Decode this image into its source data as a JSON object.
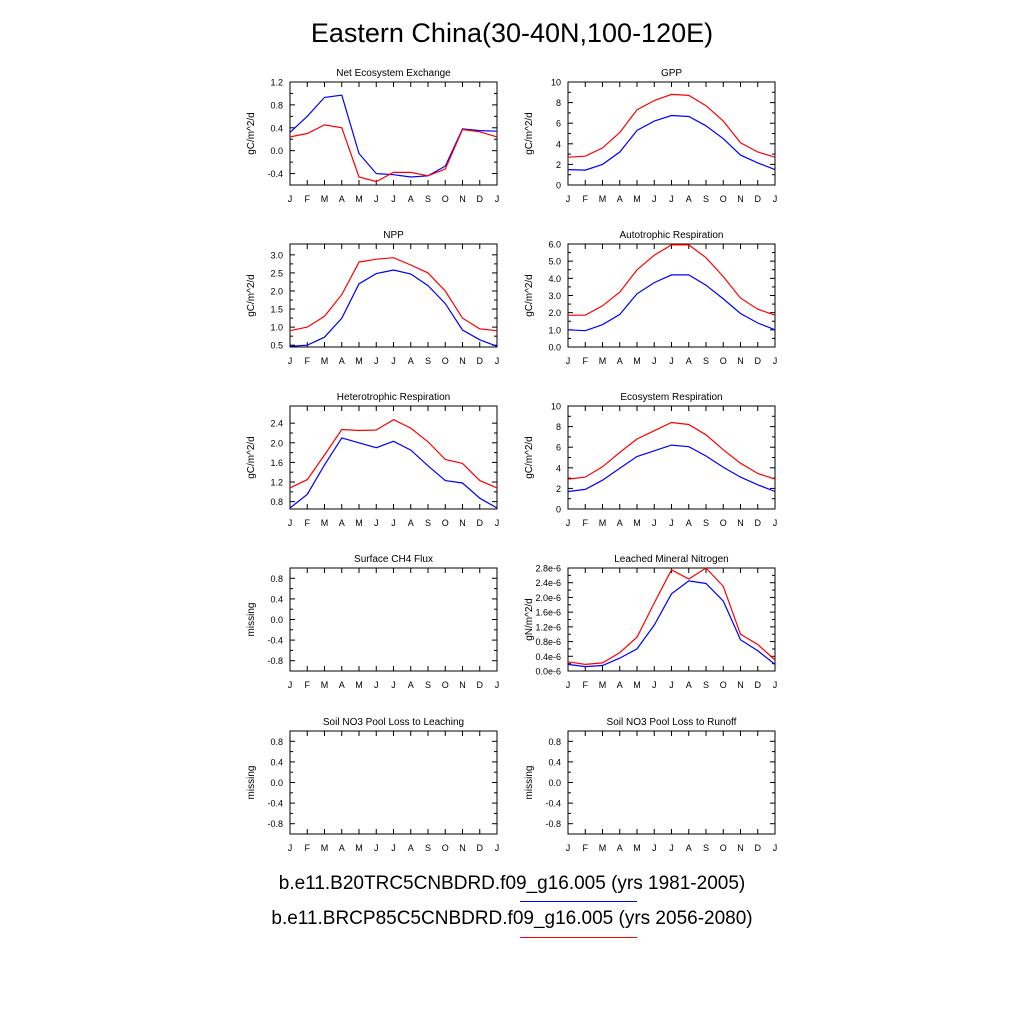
{
  "title": "Eastern China(30-40N,100-120E)",
  "month_labels": [
    "J",
    "F",
    "M",
    "A",
    "M",
    "J",
    "J",
    "A",
    "S",
    "O",
    "N",
    "D",
    "J"
  ],
  "legend": {
    "entries": [
      {
        "label": "b.e11.B20TRC5CNBDRD.f09_g16.005 (yrs 1981-2005)",
        "color": "#0000ff"
      },
      {
        "label": "b.e11.BRCP85C5CNBDRD.f09_g16.005 (yrs 2056-2080)",
        "color": "#ff0000"
      }
    ]
  },
  "chart_data": [
    {
      "type": "line",
      "title": "Net Ecosystem Exchange",
      "ylabel": "gC/m^2/d",
      "ylim": [
        -0.6,
        1.2
      ],
      "yticks": [
        -0.4,
        0.0,
        0.4,
        0.8,
        1.2
      ],
      "ytick_labels": [
        "-0.4",
        "0.0",
        "0.4",
        "0.8",
        "1.2"
      ],
      "series": [
        {
          "color": "#0000ff",
          "values": [
            0.32,
            0.6,
            0.93,
            0.97,
            -0.05,
            -0.4,
            -0.42,
            -0.46,
            -0.44,
            -0.27,
            0.38,
            0.35,
            0.34
          ]
        },
        {
          "color": "#ff0000",
          "values": [
            0.24,
            0.3,
            0.45,
            0.4,
            -0.46,
            -0.54,
            -0.38,
            -0.38,
            -0.44,
            -0.32,
            0.37,
            0.33,
            0.24
          ]
        }
      ]
    },
    {
      "type": "line",
      "title": "GPP",
      "ylabel": "gC/m^2/d",
      "ylim": [
        0,
        10
      ],
      "yticks": [
        0,
        2,
        4,
        6,
        8,
        10
      ],
      "ytick_labels": [
        "0",
        "2",
        "4",
        "6",
        "8",
        "10"
      ],
      "series": [
        {
          "color": "#0000ff",
          "values": [
            1.5,
            1.45,
            2.0,
            3.2,
            5.3,
            6.2,
            6.75,
            6.65,
            5.75,
            4.5,
            2.9,
            2.15,
            1.5
          ]
        },
        {
          "color": "#ff0000",
          "values": [
            2.7,
            2.8,
            3.6,
            5.1,
            7.3,
            8.2,
            8.8,
            8.7,
            7.7,
            6.2,
            4.1,
            3.2,
            2.7
          ]
        }
      ]
    },
    {
      "type": "line",
      "title": "NPP",
      "ylabel": "gC/m^2/d",
      "ylim": [
        0.45,
        3.3
      ],
      "yticks": [
        0.5,
        1.0,
        1.5,
        2.0,
        2.5,
        3.0
      ],
      "ytick_labels": [
        "0.5",
        "1.0",
        "1.5",
        "2.0",
        "2.5",
        "3.0"
      ],
      "series": [
        {
          "color": "#0000ff",
          "values": [
            0.47,
            0.5,
            0.72,
            1.25,
            2.2,
            2.48,
            2.58,
            2.47,
            2.15,
            1.65,
            0.92,
            0.65,
            0.47
          ]
        },
        {
          "color": "#ff0000",
          "values": [
            0.9,
            1.0,
            1.3,
            1.9,
            2.8,
            2.88,
            2.92,
            2.72,
            2.5,
            2.0,
            1.25,
            0.95,
            0.9
          ]
        }
      ]
    },
    {
      "type": "line",
      "title": "Autotrophic Respiration",
      "ylabel": "gC/m^2/d",
      "ylim": [
        0,
        6
      ],
      "yticks": [
        0,
        1,
        2,
        3,
        4,
        5,
        6
      ],
      "ytick_labels": [
        "0.0",
        "1.0",
        "2.0",
        "3.0",
        "4.0",
        "5.0",
        "6.0"
      ],
      "series": [
        {
          "color": "#0000ff",
          "values": [
            1.0,
            0.95,
            1.3,
            1.9,
            3.1,
            3.75,
            4.2,
            4.2,
            3.6,
            2.8,
            1.95,
            1.4,
            1.0
          ]
        },
        {
          "color": "#ff0000",
          "values": [
            1.85,
            1.85,
            2.4,
            3.2,
            4.5,
            5.35,
            5.95,
            5.95,
            5.2,
            4.1,
            2.85,
            2.2,
            1.85
          ]
        }
      ]
    },
    {
      "type": "line",
      "title": "Heterotrophic Respiration",
      "ylabel": "gC/m^2/d",
      "ylim": [
        0.65,
        2.75
      ],
      "yticks": [
        0.8,
        1.2,
        1.6,
        2.0,
        2.4
      ],
      "ytick_labels": [
        "0.8",
        "1.2",
        "1.6",
        "2.0",
        "2.4"
      ],
      "series": [
        {
          "color": "#0000ff",
          "values": [
            0.67,
            0.95,
            1.55,
            2.1,
            2.0,
            1.9,
            2.03,
            1.85,
            1.53,
            1.23,
            1.18,
            0.87,
            0.67
          ]
        },
        {
          "color": "#ff0000",
          "values": [
            1.08,
            1.25,
            1.75,
            2.27,
            2.25,
            2.26,
            2.47,
            2.3,
            2.02,
            1.66,
            1.58,
            1.23,
            1.08
          ]
        }
      ]
    },
    {
      "type": "line",
      "title": "Ecosystem Respiration",
      "ylabel": "gC/m^2/d",
      "ylim": [
        0,
        10
      ],
      "yticks": [
        0,
        2,
        4,
        6,
        8,
        10
      ],
      "ytick_labels": [
        "0",
        "2",
        "4",
        "6",
        "8",
        "10"
      ],
      "series": [
        {
          "color": "#0000ff",
          "values": [
            1.7,
            1.9,
            2.8,
            3.95,
            5.1,
            5.65,
            6.2,
            6.05,
            5.15,
            4.05,
            3.1,
            2.35,
            1.7
          ]
        },
        {
          "color": "#ff0000",
          "values": [
            2.9,
            3.1,
            4.1,
            5.5,
            6.8,
            7.6,
            8.4,
            8.2,
            7.2,
            5.75,
            4.45,
            3.45,
            2.9
          ]
        }
      ]
    },
    {
      "type": "line",
      "title": "Surface CH4 Flux",
      "ylabel": "missing",
      "ylim": [
        -1.0,
        1.0
      ],
      "yticks": [
        -0.8,
        -0.4,
        0.0,
        0.4,
        0.8
      ],
      "ytick_labels": [
        "-0.8",
        "-0.4",
        "0.0",
        "0.4",
        "0.8"
      ],
      "series": []
    },
    {
      "type": "line",
      "title": "Leached Mineral Nitrogen",
      "ylabel": "gN/m^2/d",
      "ylim": [
        0,
        2.8
      ],
      "yticks": [
        0,
        0.4,
        0.8,
        1.2,
        1.6,
        2.0,
        2.4,
        2.8
      ],
      "ytick_labels": [
        "0.0e-6",
        "0.4e-6",
        "0.8e-6",
        "1.2e-6",
        "1.6e-6",
        "2.0e-6",
        "2.4e-6",
        "2.8e-6"
      ],
      "series": [
        {
          "color": "#0000ff",
          "values": [
            0.18,
            0.12,
            0.15,
            0.35,
            0.6,
            1.25,
            2.1,
            2.45,
            2.38,
            1.9,
            0.85,
            0.55,
            0.18
          ]
        },
        {
          "color": "#ff0000",
          "values": [
            0.25,
            0.18,
            0.22,
            0.5,
            0.92,
            1.85,
            2.75,
            2.5,
            2.8,
            2.3,
            1.0,
            0.72,
            0.3
          ]
        }
      ]
    },
    {
      "type": "line",
      "title": "Soil NO3 Pool Loss to Leaching",
      "ylabel": "missing",
      "ylim": [
        -1.0,
        1.0
      ],
      "yticks": [
        -0.8,
        -0.4,
        0.0,
        0.4,
        0.8
      ],
      "ytick_labels": [
        "-0.8",
        "-0.4",
        "0.0",
        "0.4",
        "0.8"
      ],
      "series": []
    },
    {
      "type": "line",
      "title": "Soil NO3 Pool Loss to Runoff",
      "ylabel": "missing",
      "ylim": [
        -1.0,
        1.0
      ],
      "yticks": [
        -0.8,
        -0.4,
        0.0,
        0.4,
        0.8
      ],
      "ytick_labels": [
        "-0.8",
        "-0.4",
        "0.0",
        "0.4",
        "0.8"
      ],
      "series": []
    }
  ]
}
